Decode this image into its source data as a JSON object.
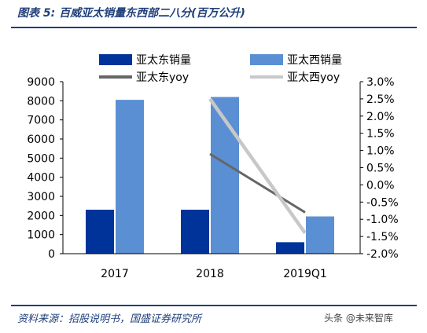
{
  "page": {
    "figure_title": "图表 5:  百威亚太销量东西部二八分(百万公升)",
    "source": "资料来源：招股说明书，国盛证券研究所",
    "watermark": "头条 @未来智库"
  },
  "chart_data": {
    "type": "bar",
    "categories": [
      "2017",
      "2018",
      "2019Q1"
    ],
    "series": [
      {
        "name": "亚太东销量",
        "type": "bar",
        "axis": "left",
        "color": "#003399",
        "values": [
          2300,
          2300,
          600
        ]
      },
      {
        "name": "亚太西销量",
        "type": "bar",
        "axis": "left",
        "color": "#5b8fd3",
        "values": [
          8050,
          8200,
          1950
        ]
      },
      {
        "name": "亚太东yoy",
        "type": "line",
        "axis": "right",
        "color": "#666666",
        "values": [
          null,
          0.9,
          -0.8
        ]
      },
      {
        "name": "亚太西yoy",
        "type": "line",
        "axis": "right",
        "color": "#c8c8c8",
        "values": [
          null,
          2.5,
          -1.4
        ]
      }
    ],
    "y_left": {
      "min": 0,
      "max": 9000,
      "ticks": [
        "9000",
        "8000",
        "7000",
        "6000",
        "5000",
        "4000",
        "3000",
        "2000",
        "1000",
        "0"
      ]
    },
    "y_right": {
      "min": -2.0,
      "max": 3.0,
      "ticks": [
        "3.0%",
        "2.5%",
        "2.0%",
        "1.5%",
        "1.0%",
        "0.5%",
        "0.0%",
        "-0.5%",
        "-1.0%",
        "-1.5%",
        "-2.0%"
      ]
    },
    "legend_position": "top",
    "grid": false
  }
}
